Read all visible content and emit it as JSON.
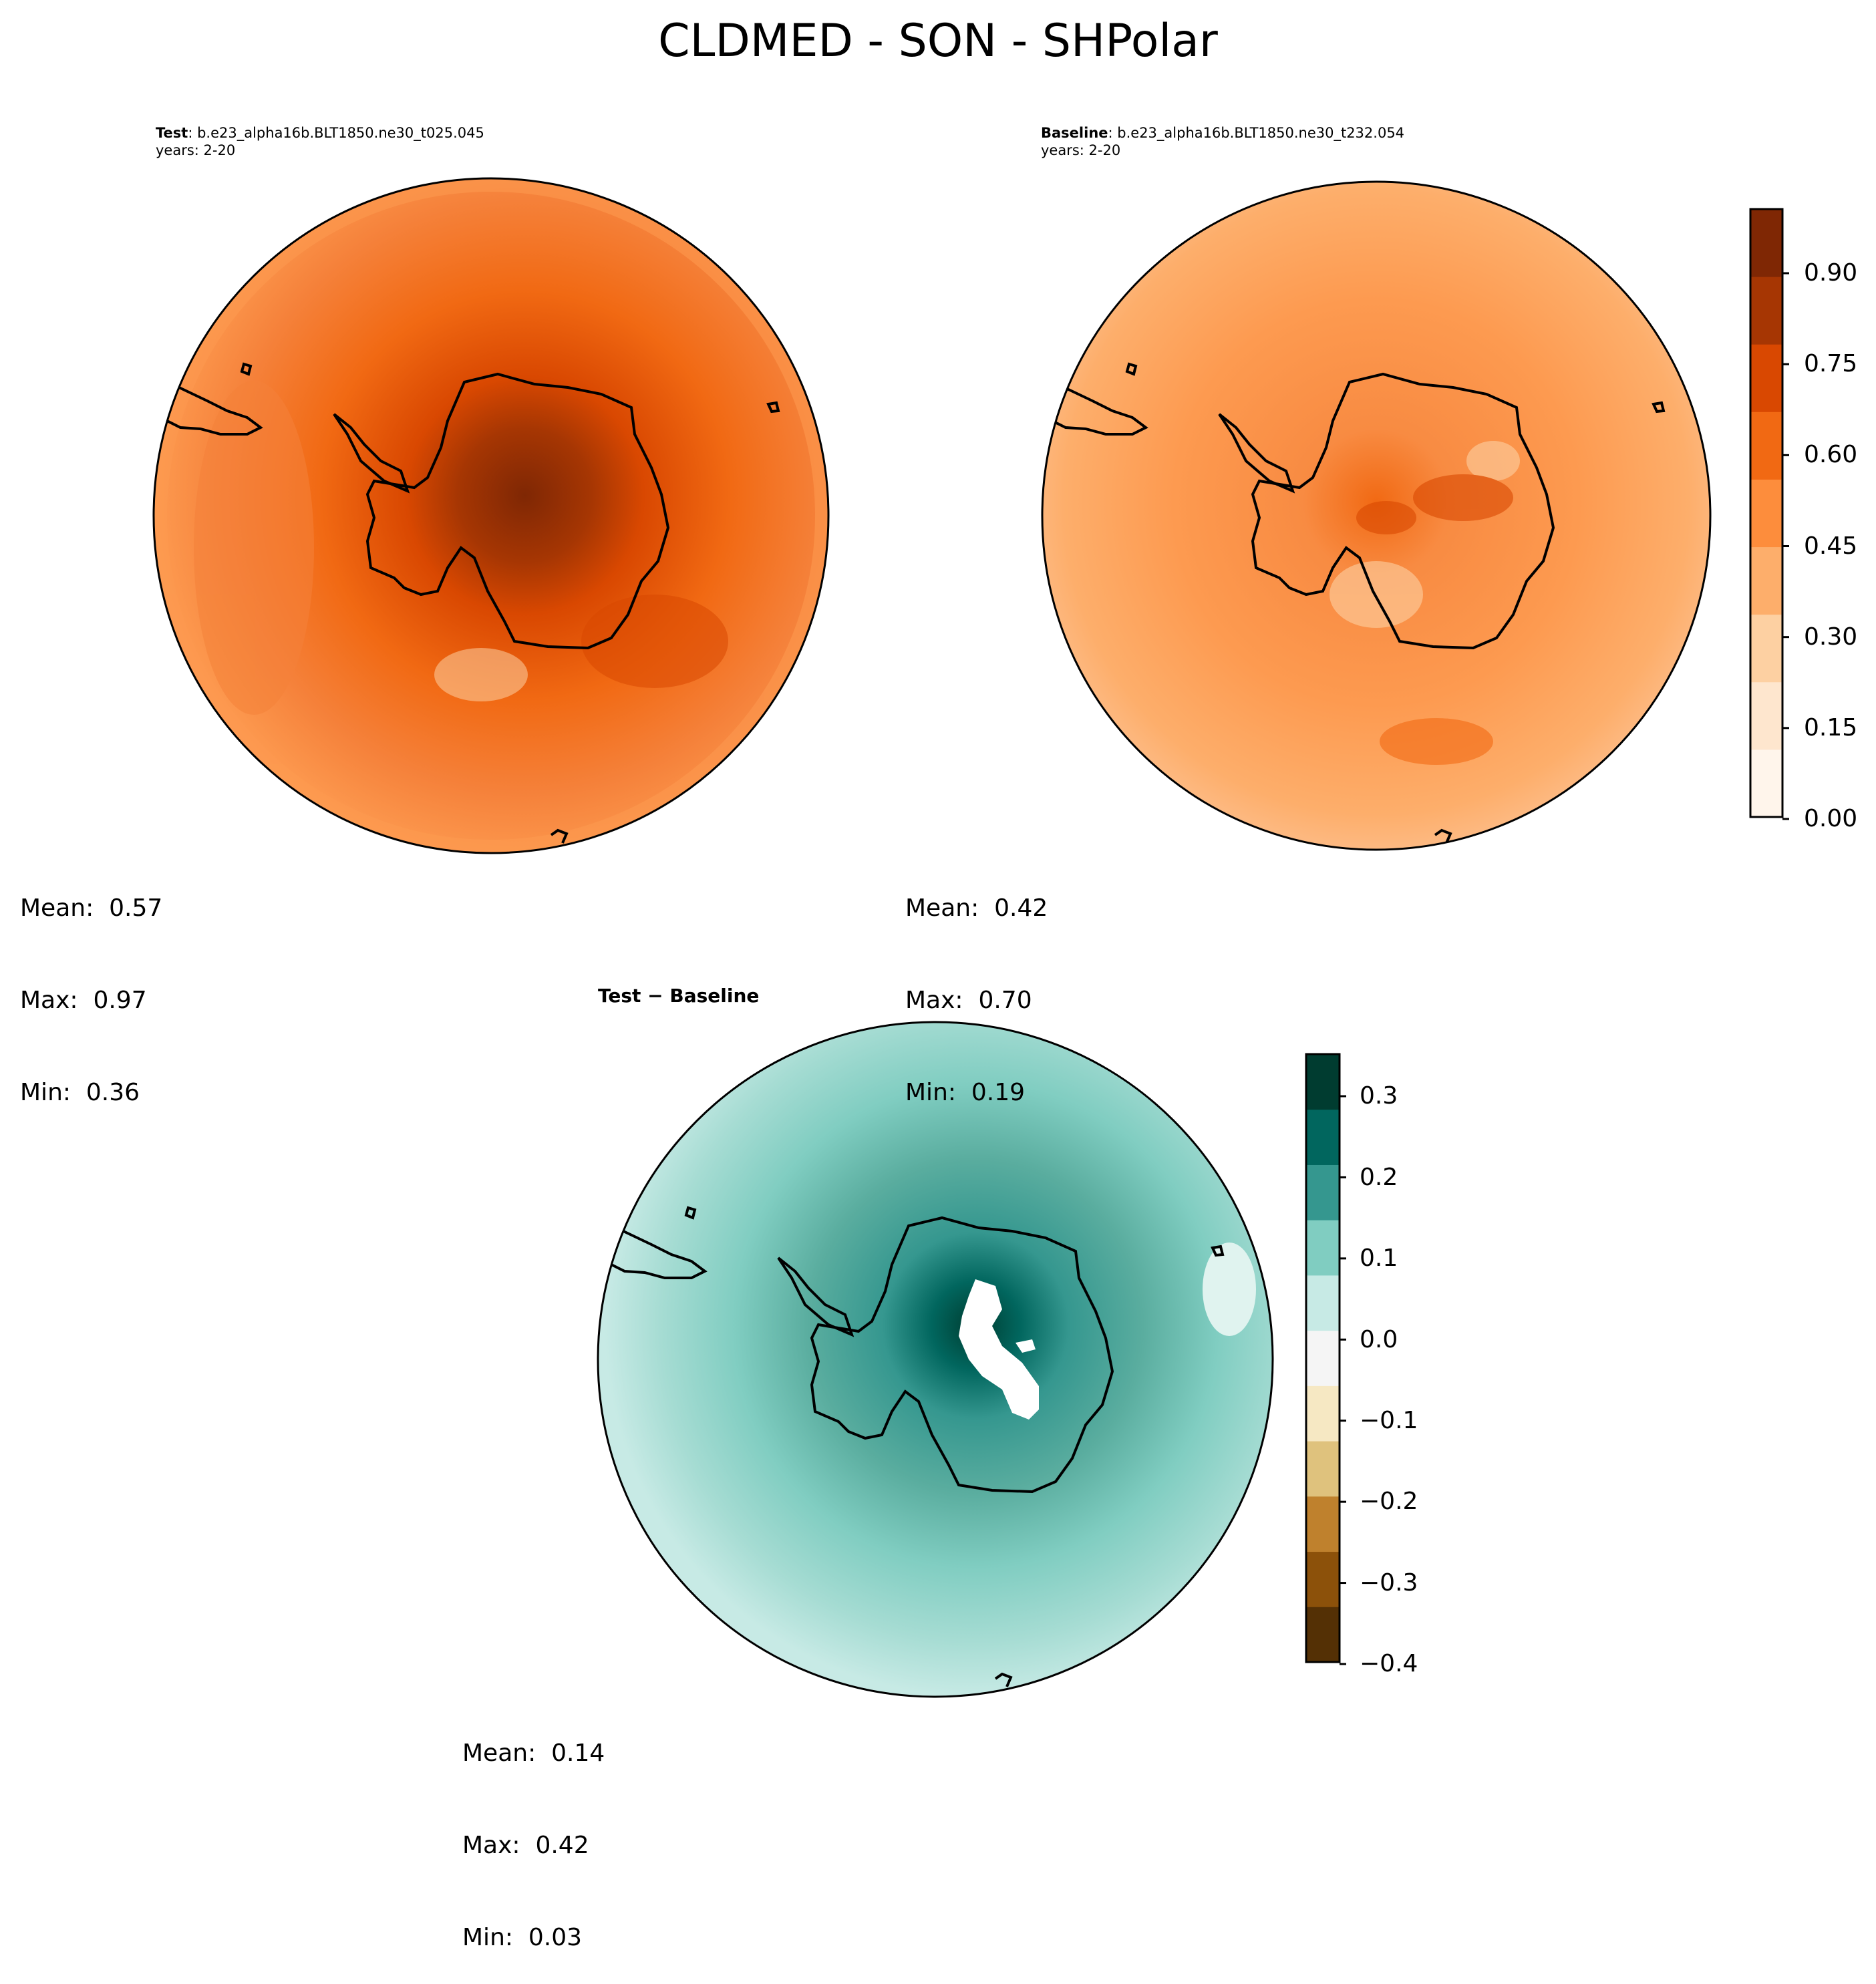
{
  "figure": {
    "title": "CLDMED - SON - SHPolar"
  },
  "panels": {
    "test": {
      "label": "Test",
      "case": ": b.e23_alpha16b.BLT1850.ne30_t025.045",
      "years": "years: 2-20",
      "mean": "Mean:  0.57",
      "max": "Max:  0.97",
      "min": "Min:  0.36"
    },
    "baseline": {
      "label": "Baseline",
      "case": ": b.e23_alpha16b.BLT1850.ne30_t232.054",
      "years": "years: 2-20",
      "mean": "Mean:  0.42",
      "max": "Max:  0.70",
      "min": "Min:  0.19"
    },
    "diff": {
      "label": "Test − Baseline",
      "mean": "Mean:  0.14",
      "max": "Max:  0.42",
      "min": "Min:  0.03"
    }
  },
  "colorbars": {
    "main": {
      "ticks": [
        "0.90",
        "0.75",
        "0.60",
        "0.45",
        "0.30",
        "0.15",
        "0.00"
      ],
      "colors": [
        "#fff5eb",
        "#fee6ce",
        "#fdd0a2",
        "#fdae6b",
        "#fd8d3c",
        "#f16913",
        "#d94801",
        "#a63603",
        "#7f2704"
      ]
    },
    "diff": {
      "ticks": [
        "0.3",
        "0.2",
        "0.1",
        "0.0",
        "−0.1",
        "−0.2",
        "−0.3",
        "−0.4"
      ],
      "colors": [
        "#003c30",
        "#01665e",
        "#35978f",
        "#80cdc1",
        "#c7eae5",
        "#f5f5f5",
        "#f6e8c3",
        "#dfc27d",
        "#bf812d",
        "#8c510a",
        "#543005"
      ]
    }
  },
  "chart_data": [
    {
      "type": "heatmap",
      "title": "Test",
      "subtitle": "b.e23_alpha16b.BLT1850.ne30_t025.045",
      "projection": "south polar stereographic",
      "colorbar_range": [
        0.0,
        1.0
      ],
      "mean": 0.57,
      "max": 0.97,
      "min": 0.36
    },
    {
      "type": "heatmap",
      "title": "Baseline",
      "subtitle": "b.e23_alpha16b.BLT1850.ne30_t232.054",
      "projection": "south polar stereographic",
      "colorbar_range": [
        0.0,
        1.0
      ],
      "colorbar_ticks": [
        0.0,
        0.15,
        0.3,
        0.45,
        0.6,
        0.75,
        0.9
      ],
      "mean": 0.42,
      "max": 0.7,
      "min": 0.19
    },
    {
      "type": "heatmap",
      "title": "Test − Baseline",
      "projection": "south polar stereographic",
      "colorbar_range": [
        -0.4,
        0.35
      ],
      "colorbar_ticks": [
        -0.4,
        -0.3,
        -0.2,
        -0.1,
        0.0,
        0.1,
        0.2,
        0.3
      ],
      "mean": 0.14,
      "max": 0.42,
      "min": 0.03
    }
  ]
}
